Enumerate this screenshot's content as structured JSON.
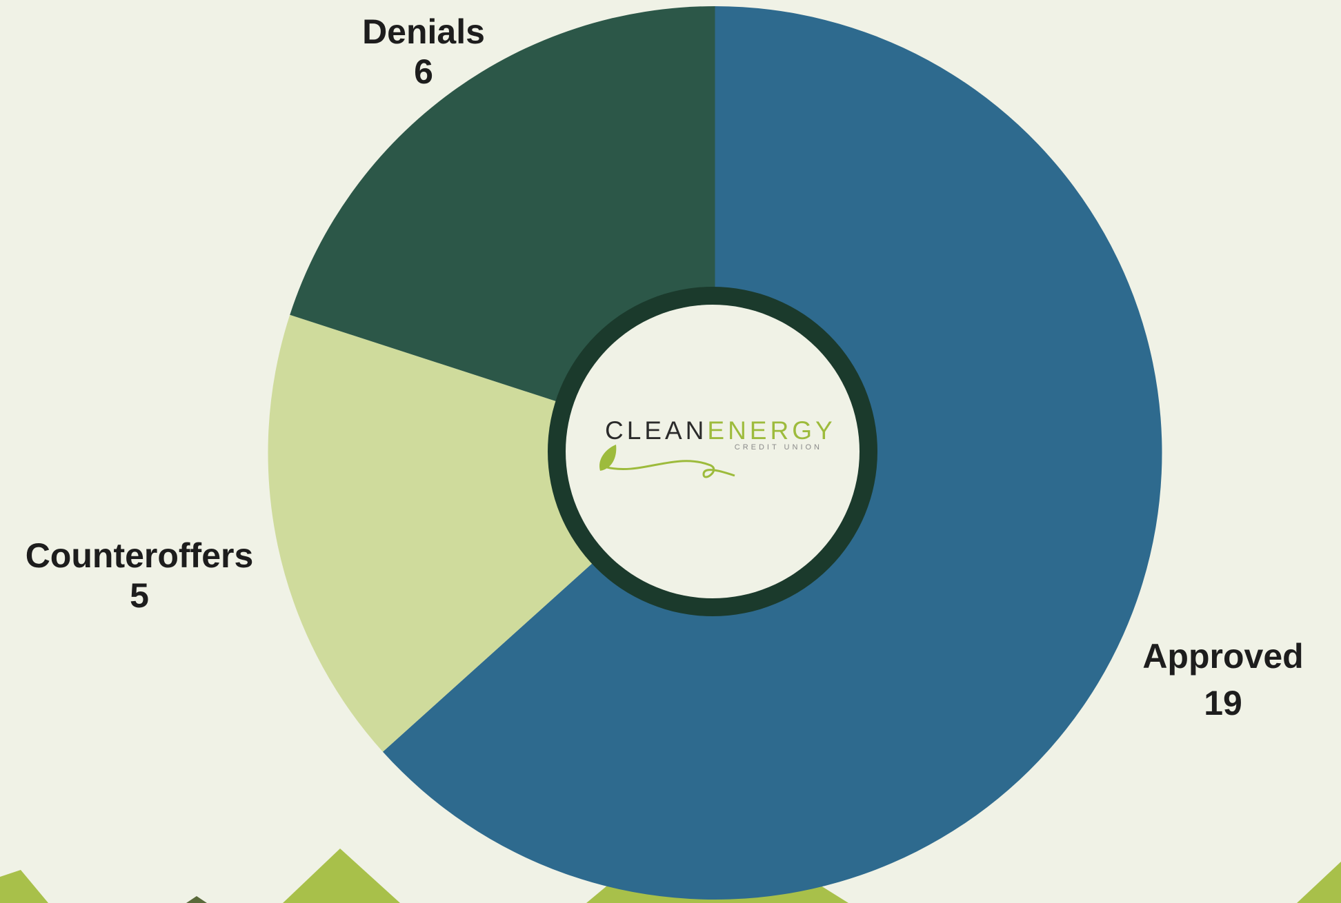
{
  "chart_data": {
    "type": "pie",
    "categories": [
      "Approved",
      "Counteroffers",
      "Denials"
    ],
    "values": [
      19,
      5,
      6
    ],
    "colors": [
      "#2e6a8e",
      "#cfdb9c",
      "#2c5748"
    ]
  },
  "logo": {
    "word1": "CLEAN",
    "word2": "ENERGY",
    "subtitle": "CREDIT UNION"
  }
}
